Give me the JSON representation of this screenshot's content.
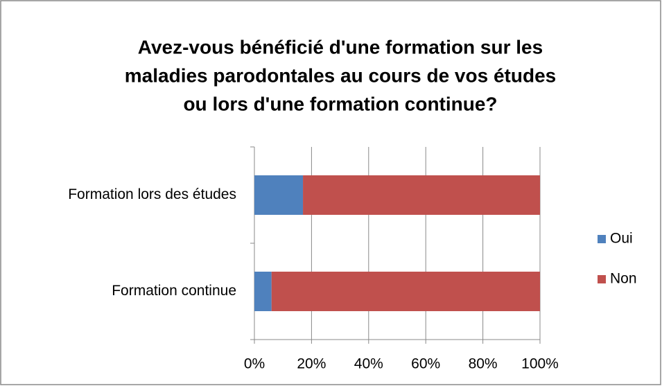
{
  "chart_data": {
    "type": "stacked_barh",
    "title": [
      "Avez-vous bénéficié d'une formation sur les",
      "maladies parodontales au cours de vos études",
      "ou lors d'une formation continue?"
    ],
    "categories": [
      "Formation lors des études",
      "Formation continue"
    ],
    "series": [
      {
        "name": "Oui",
        "color": "#4f81bd",
        "values": [
          17,
          6
        ]
      },
      {
        "name": "Non",
        "color": "#c0504d",
        "values": [
          83,
          94
        ]
      }
    ],
    "xlim": [
      0,
      100
    ],
    "xticks": [
      {
        "value": 0,
        "label": "0%"
      },
      {
        "value": 20,
        "label": "20%"
      },
      {
        "value": 40,
        "label": "40%"
      },
      {
        "value": 60,
        "label": "60%"
      },
      {
        "value": 80,
        "label": "80%"
      },
      {
        "value": 100,
        "label": "100%"
      }
    ],
    "grid": true,
    "legend": "right"
  }
}
